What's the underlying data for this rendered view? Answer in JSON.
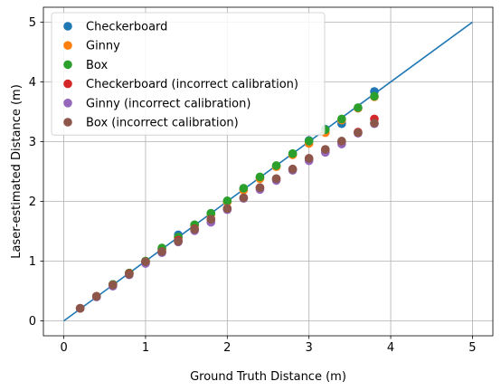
{
  "chart_data": {
    "type": "scatter",
    "xlabel": "Ground Truth Distance (m)",
    "ylabel": "Laser-estimated Distance (m)",
    "xlim": [
      -0.25,
      5.25
    ],
    "ylim": [
      -0.25,
      5.25
    ],
    "xticks": [
      0,
      1,
      2,
      3,
      4,
      5
    ],
    "yticks": [
      0,
      1,
      2,
      3,
      4,
      5
    ],
    "grid": true,
    "legend_position": "top-left",
    "reference_line": {
      "x": [
        0,
        5
      ],
      "y": [
        0,
        5
      ],
      "color": "#1f77b4"
    },
    "series": [
      {
        "name": "Checkerboard",
        "color": "#1f77b4",
        "x": [
          0.2,
          0.4,
          0.6,
          0.8,
          1.0,
          1.2,
          1.4,
          1.6,
          1.8,
          2.0,
          2.2,
          2.4,
          2.6,
          2.8,
          3.0,
          3.2,
          3.4,
          3.6,
          3.8
        ],
        "y": [
          0.21,
          0.41,
          0.61,
          0.8,
          1.0,
          1.2,
          1.44,
          1.6,
          1.8,
          2.0,
          2.21,
          2.4,
          2.59,
          2.79,
          3.02,
          3.21,
          3.3,
          3.56,
          3.84
        ]
      },
      {
        "name": "Ginny",
        "color": "#ff7f0e",
        "x": [
          0.2,
          0.4,
          0.6,
          0.8,
          1.0,
          1.2,
          1.4,
          1.6,
          1.8,
          2.0,
          2.2,
          2.4,
          2.6,
          2.8,
          3.0,
          3.2,
          3.4,
          3.6,
          3.8
        ],
        "y": [
          0.21,
          0.41,
          0.61,
          0.8,
          1.0,
          1.2,
          1.4,
          1.6,
          1.78,
          1.99,
          2.19,
          2.38,
          2.58,
          2.78,
          2.97,
          3.15,
          3.36,
          3.56,
          3.75
        ]
      },
      {
        "name": "Box",
        "color": "#2ca02c",
        "x": [
          0.2,
          0.4,
          0.6,
          0.8,
          1.0,
          1.2,
          1.4,
          1.6,
          1.8,
          2.0,
          2.2,
          2.4,
          2.6,
          2.8,
          3.0,
          3.2,
          3.4,
          3.6,
          3.8
        ],
        "y": [
          0.21,
          0.41,
          0.61,
          0.8,
          1.0,
          1.22,
          1.4,
          1.61,
          1.8,
          2.01,
          2.22,
          2.41,
          2.6,
          2.8,
          3.01,
          3.2,
          3.38,
          3.57,
          3.76
        ]
      },
      {
        "name": "Checkerboard (incorrect calibration)",
        "color": "#d62728",
        "x": [
          0.2,
          0.4,
          0.6,
          0.8,
          1.0,
          1.2,
          1.4,
          1.6,
          1.8,
          2.0,
          2.2,
          2.4,
          2.6,
          2.8,
          3.0,
          3.2,
          3.4,
          3.6,
          3.8
        ],
        "y": [
          0.21,
          0.41,
          0.6,
          0.79,
          0.98,
          1.16,
          1.35,
          1.54,
          1.7,
          1.88,
          2.06,
          2.23,
          2.38,
          2.54,
          2.72,
          2.86,
          3.0,
          3.16,
          3.38
        ]
      },
      {
        "name": "Ginny (incorrect calibration)",
        "color": "#9467bd",
        "x": [
          0.2,
          0.4,
          0.6,
          0.8,
          1.0,
          1.2,
          1.4,
          1.6,
          1.8,
          2.0,
          2.2,
          2.4,
          2.6,
          2.8,
          3.0,
          3.2,
          3.4,
          3.6,
          3.8
        ],
        "y": [
          0.21,
          0.4,
          0.58,
          0.77,
          0.96,
          1.14,
          1.32,
          1.51,
          1.65,
          1.86,
          2.05,
          2.2,
          2.35,
          2.52,
          2.68,
          2.82,
          2.96,
          3.14,
          3.3
        ]
      },
      {
        "name": "Box (incorrect calibration)",
        "color": "#8c564b",
        "x": [
          0.2,
          0.4,
          0.6,
          0.8,
          1.0,
          1.2,
          1.4,
          1.6,
          1.8,
          2.0,
          2.2,
          2.4,
          2.6,
          2.8,
          3.0,
          3.2,
          3.4,
          3.6,
          3.8
        ],
        "y": [
          0.21,
          0.41,
          0.6,
          0.78,
          0.99,
          1.16,
          1.33,
          1.53,
          1.7,
          1.88,
          2.06,
          2.23,
          2.38,
          2.54,
          2.72,
          2.87,
          3.01,
          3.15,
          3.31
        ]
      }
    ]
  }
}
